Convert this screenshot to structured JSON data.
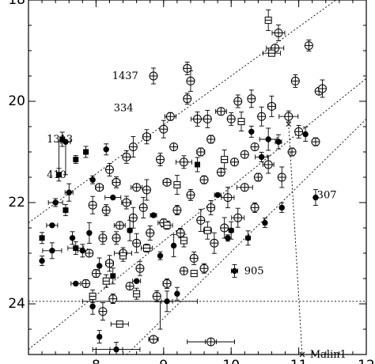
{
  "chart_data": {
    "type": "scatter",
    "xlim": [
      7.0,
      12.0
    ],
    "ylim": [
      18.0,
      25.0
    ],
    "y_inverted": true,
    "x_ticks": [
      8,
      9,
      10,
      11,
      12
    ],
    "y_ticks": [
      18,
      20,
      22,
      24
    ],
    "x_ticklabels": [
      "8",
      "9",
      "10",
      "11",
      "12"
    ],
    "y_ticklabels": [
      "18",
      "20",
      "22",
      "24"
    ],
    "xlabel": "",
    "ylabel": "",
    "grid": false,
    "legend": "none",
    "reference_lines": [
      {
        "style": "dotted",
        "from": [
          7.0,
          22.4
        ],
        "to": [
          11.55,
          18.0
        ]
      },
      {
        "style": "dotted",
        "from": [
          7.0,
          24.9
        ],
        "to": [
          12.0,
          19.55
        ]
      },
      {
        "style": "dotted",
        "from": [
          8.15,
          25.4
        ],
        "to": [
          12.0,
          20.35
        ]
      },
      {
        "style": "dotted-horizontal",
        "y": 23.95
      }
    ],
    "labels": [
      {
        "text": "1437",
        "x": 8.8,
        "y": 19.5
      },
      {
        "text": "334",
        "x": 8.8,
        "y": 20.1
      },
      {
        "text": "1313",
        "x": 7.2,
        "y": 20.75
      },
      {
        "text": "410",
        "x": 7.2,
        "y": 21.45
      },
      {
        "text": "307",
        "x": 11.2,
        "y": 21.85
      },
      {
        "text": "905",
        "x": 10.1,
        "y": 23.35
      },
      {
        "text": "Malin1",
        "x": 11.05,
        "y": 25.0
      }
    ],
    "series": [
      {
        "marker": "open-circle-cross",
        "points": [
          [
            8.85,
            19.5
          ],
          [
            9.35,
            19.35
          ],
          [
            9.4,
            19.6
          ],
          [
            9.35,
            19.95
          ],
          [
            9.1,
            20.3
          ],
          [
            9.0,
            20.55
          ],
          [
            8.75,
            20.7
          ],
          [
            8.55,
            20.9
          ],
          [
            8.45,
            21.1
          ],
          [
            8.2,
            21.35
          ],
          [
            8.3,
            21.6
          ],
          [
            8.05,
            21.7
          ],
          [
            8.15,
            22.15
          ],
          [
            8.45,
            22.0
          ],
          [
            8.75,
            21.75
          ],
          [
            9.05,
            21.6
          ],
          [
            9.3,
            21.2
          ],
          [
            9.55,
            21.0
          ],
          [
            9.7,
            20.75
          ],
          [
            9.65,
            20.35
          ],
          [
            9.85,
            20.2
          ],
          [
            10.0,
            20.35
          ],
          [
            10.1,
            20.0
          ],
          [
            10.3,
            19.95
          ],
          [
            10.45,
            20.3
          ],
          [
            10.65,
            18.95
          ],
          [
            10.7,
            18.65
          ],
          [
            11.15,
            18.9
          ],
          [
            10.95,
            19.6
          ],
          [
            10.85,
            20.3
          ],
          [
            11.0,
            20.6
          ],
          [
            10.9,
            21.0
          ],
          [
            10.75,
            21.5
          ],
          [
            11.25,
            20.8
          ],
          [
            11.3,
            19.8
          ],
          [
            11.35,
            19.75
          ],
          [
            10.6,
            20.1
          ],
          [
            10.35,
            20.9
          ],
          [
            10.2,
            21.05
          ],
          [
            10.05,
            21.2
          ],
          [
            9.85,
            21.4
          ],
          [
            9.6,
            21.55
          ],
          [
            9.4,
            21.85
          ],
          [
            9.2,
            22.15
          ],
          [
            9.0,
            22.4
          ],
          [
            8.8,
            22.6
          ],
          [
            8.6,
            22.8
          ],
          [
            8.4,
            23.0
          ],
          [
            8.2,
            23.2
          ],
          [
            8.0,
            23.4
          ],
          [
            7.85,
            23.6
          ],
          [
            7.9,
            23.0
          ],
          [
            8.1,
            22.7
          ],
          [
            8.35,
            22.45
          ],
          [
            8.55,
            22.3
          ],
          [
            8.7,
            22.1
          ],
          [
            9.55,
            22.35
          ],
          [
            9.7,
            22.1
          ],
          [
            9.95,
            21.9
          ],
          [
            10.2,
            21.7
          ],
          [
            10.4,
            21.5
          ],
          [
            10.55,
            21.25
          ],
          [
            10.1,
            22.3
          ],
          [
            9.75,
            22.8
          ],
          [
            9.45,
            23.1
          ],
          [
            9.3,
            23.35
          ],
          [
            9.05,
            23.6
          ],
          [
            8.9,
            23.85
          ],
          [
            8.5,
            23.65
          ],
          [
            8.25,
            23.9
          ],
          [
            8.1,
            24.15
          ],
          [
            9.7,
            24.75
          ],
          [
            8.85,
            24.7
          ],
          [
            9.9,
            22.5
          ],
          [
            10.35,
            22.1
          ],
          [
            8.95,
            21.15
          ],
          [
            9.15,
            20.9
          ],
          [
            9.5,
            20.35
          ],
          [
            8.6,
            21.7
          ],
          [
            8.3,
            22.7
          ],
          [
            7.95,
            22.05
          ],
          [
            8.65,
            23.3
          ],
          [
            9.25,
            22.6
          ],
          [
            9.6,
            23.3
          ]
        ]
      },
      {
        "marker": "filled-circle",
        "points": [
          [
            7.55,
            20.8
          ],
          [
            7.35,
            22.45
          ],
          [
            7.2,
            23.15
          ],
          [
            7.35,
            22.95
          ],
          [
            7.65,
            22.7
          ],
          [
            7.9,
            22.6
          ],
          [
            7.6,
            21.8
          ],
          [
            7.4,
            22.0
          ],
          [
            7.7,
            23.6
          ],
          [
            7.95,
            24.05
          ],
          [
            8.05,
            24.65
          ],
          [
            8.3,
            24.9
          ],
          [
            10.05,
            23.35
          ],
          [
            9.2,
            23.8
          ],
          [
            9.05,
            23.95
          ],
          [
            8.85,
            22.25
          ],
          [
            8.6,
            23.55
          ],
          [
            8.95,
            23.05
          ],
          [
            9.15,
            22.85
          ],
          [
            10.25,
            22.7
          ],
          [
            10.5,
            22.4
          ],
          [
            10.75,
            22.1
          ],
          [
            10.45,
            21.1
          ],
          [
            10.7,
            20.8
          ],
          [
            11.1,
            20.65
          ],
          [
            11.25,
            21.9
          ],
          [
            10.3,
            20.6
          ],
          [
            10.55,
            20.75
          ],
          [
            9.95,
            22.7
          ],
          [
            8.25,
            21.9
          ],
          [
            8.5,
            22.55
          ],
          [
            8.05,
            23.25
          ],
          [
            7.8,
            22.95
          ],
          [
            9.8,
            21.85
          ],
          [
            10.0,
            22.55
          ],
          [
            7.95,
            21.55
          ],
          [
            8.15,
            20.95
          ]
        ]
      },
      {
        "marker": "filled-square",
        "points": [
          [
            7.5,
            20.75
          ],
          [
            7.45,
            21.45
          ],
          [
            7.7,
            21.15
          ],
          [
            7.55,
            22.15
          ],
          [
            7.85,
            21.0
          ],
          [
            9.5,
            21.25
          ],
          [
            7.7,
            22.9
          ],
          [
            7.2,
            22.7
          ],
          [
            8.25,
            23.45
          ]
        ]
      },
      {
        "marker": "open-square",
        "points": [
          [
            10.55,
            18.4
          ],
          [
            9.3,
            22.75
          ],
          [
            9.65,
            22.55
          ],
          [
            9.05,
            22.45
          ],
          [
            8.75,
            22.9
          ],
          [
            9.45,
            23.4
          ],
          [
            8.4,
            23.05
          ],
          [
            8.15,
            23.55
          ],
          [
            10.15,
            20.4
          ],
          [
            9.9,
            21.15
          ],
          [
            10.6,
            19.05
          ],
          [
            8.6,
            23.8
          ],
          [
            8.35,
            24.4
          ],
          [
            7.95,
            23.85
          ],
          [
            9.2,
            21.65
          ]
        ]
      },
      {
        "marker": "cross",
        "points": [
          [
            10.85,
            20.45
          ],
          [
            11.05,
            25.0
          ]
        ]
      }
    ],
    "error_bars_note": "Most points carry vertical and/or horizontal error bars"
  }
}
